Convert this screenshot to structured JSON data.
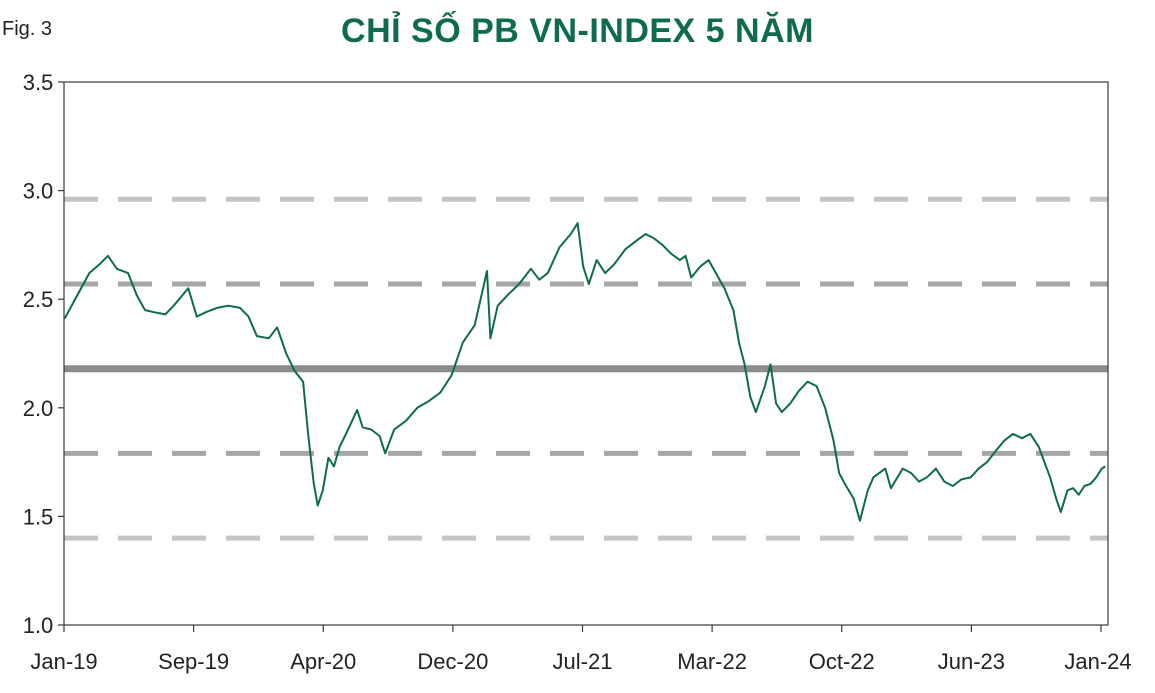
{
  "figure_label": "Fig. 3",
  "chart_data": {
    "type": "line",
    "title": "CHỈ SỐ PB VN-INDEX 5 NĂM",
    "xlabel": "",
    "ylabel": "",
    "ylim": [
      1.0,
      3.5
    ],
    "y_ticks": [
      "1.0",
      "1.5",
      "2.0",
      "2.5",
      "3.0",
      "3.5"
    ],
    "x_tick_labels": [
      "Jan-19",
      "Sep-19",
      "Apr-20",
      "Dec-20",
      "Jul-21",
      "Mar-22",
      "Oct-22",
      "Jun-23",
      "Jan-24"
    ],
    "x_range": [
      "2019-01",
      "2024-01"
    ],
    "grid": false,
    "legend": "none",
    "colors": {
      "series": "#0e6b50",
      "mean": "#8c8c8c",
      "sd1": "#a6a6a6",
      "sd2": "#c4c4c4",
      "title": "#0e6b50"
    },
    "reference_lines": [
      {
        "value": 2.96,
        "style": "dashed-light"
      },
      {
        "value": 2.57,
        "style": "dashed"
      },
      {
        "value": 2.18,
        "style": "solid"
      },
      {
        "value": 1.79,
        "style": "dashed"
      },
      {
        "value": 1.4,
        "style": "dashed-light"
      }
    ],
    "series": [
      {
        "values": [
          [
            "2019-01-02",
            2.41
          ],
          [
            "2019-01-25",
            2.52
          ],
          [
            "2019-02-15",
            2.62
          ],
          [
            "2019-03-05",
            2.66
          ],
          [
            "2019-03-20",
            2.7
          ],
          [
            "2019-04-05",
            2.64
          ],
          [
            "2019-04-25",
            2.62
          ],
          [
            "2019-05-10",
            2.52
          ],
          [
            "2019-05-25",
            2.45
          ],
          [
            "2019-06-10",
            2.44
          ],
          [
            "2019-06-30",
            2.43
          ],
          [
            "2019-07-15",
            2.47
          ],
          [
            "2019-07-31",
            2.52
          ],
          [
            "2019-08-10",
            2.55
          ],
          [
            "2019-08-25",
            2.42
          ],
          [
            "2019-09-10",
            2.44
          ],
          [
            "2019-09-30",
            2.46
          ],
          [
            "2019-10-20",
            2.47
          ],
          [
            "2019-11-10",
            2.46
          ],
          [
            "2019-11-25",
            2.42
          ],
          [
            "2019-12-10",
            2.33
          ],
          [
            "2019-12-31",
            2.32
          ],
          [
            "2020-01-15",
            2.37
          ],
          [
            "2020-01-31",
            2.25
          ],
          [
            "2020-02-15",
            2.17
          ],
          [
            "2020-03-01",
            2.12
          ],
          [
            "2020-03-10",
            1.88
          ],
          [
            "2020-03-20",
            1.65
          ],
          [
            "2020-03-27",
            1.55
          ],
          [
            "2020-04-05",
            1.62
          ],
          [
            "2020-04-15",
            1.77
          ],
          [
            "2020-04-25",
            1.73
          ],
          [
            "2020-05-05",
            1.82
          ],
          [
            "2020-05-20",
            1.9
          ],
          [
            "2020-06-05",
            1.99
          ],
          [
            "2020-06-15",
            1.91
          ],
          [
            "2020-06-30",
            1.9
          ],
          [
            "2020-07-15",
            1.87
          ],
          [
            "2020-07-25",
            1.79
          ],
          [
            "2020-08-10",
            1.9
          ],
          [
            "2020-08-31",
            1.94
          ],
          [
            "2020-09-20",
            2.0
          ],
          [
            "2020-10-10",
            2.03
          ],
          [
            "2020-10-31",
            2.07
          ],
          [
            "2020-11-20",
            2.15
          ],
          [
            "2020-12-10",
            2.3
          ],
          [
            "2020-12-31",
            2.38
          ],
          [
            "2021-01-15",
            2.55
          ],
          [
            "2021-01-22",
            2.63
          ],
          [
            "2021-01-28",
            2.32
          ],
          [
            "2021-02-10",
            2.47
          ],
          [
            "2021-02-28",
            2.52
          ],
          [
            "2021-03-20",
            2.57
          ],
          [
            "2021-04-10",
            2.64
          ],
          [
            "2021-04-25",
            2.59
          ],
          [
            "2021-05-10",
            2.62
          ],
          [
            "2021-05-31",
            2.74
          ],
          [
            "2021-06-20",
            2.8
          ],
          [
            "2021-07-02",
            2.85
          ],
          [
            "2021-07-12",
            2.65
          ],
          [
            "2021-07-22",
            2.57
          ],
          [
            "2021-08-05",
            2.68
          ],
          [
            "2021-08-20",
            2.62
          ],
          [
            "2021-09-05",
            2.66
          ],
          [
            "2021-09-25",
            2.73
          ],
          [
            "2021-10-15",
            2.77
          ],
          [
            "2021-10-31",
            2.8
          ],
          [
            "2021-11-15",
            2.78
          ],
          [
            "2021-11-30",
            2.75
          ],
          [
            "2021-12-15",
            2.71
          ],
          [
            "2021-12-31",
            2.68
          ],
          [
            "2022-01-10",
            2.7
          ],
          [
            "2022-01-20",
            2.6
          ],
          [
            "2022-02-05",
            2.65
          ],
          [
            "2022-02-20",
            2.68
          ],
          [
            "2022-03-05",
            2.62
          ],
          [
            "2022-03-20",
            2.55
          ],
          [
            "2022-04-05",
            2.45
          ],
          [
            "2022-04-15",
            2.3
          ],
          [
            "2022-04-25",
            2.2
          ],
          [
            "2022-05-05",
            2.05
          ],
          [
            "2022-05-15",
            1.98
          ],
          [
            "2022-05-31",
            2.1
          ],
          [
            "2022-06-10",
            2.2
          ],
          [
            "2022-06-20",
            2.02
          ],
          [
            "2022-06-30",
            1.98
          ],
          [
            "2022-07-15",
            2.02
          ],
          [
            "2022-07-31",
            2.08
          ],
          [
            "2022-08-15",
            2.12
          ],
          [
            "2022-08-31",
            2.1
          ],
          [
            "2022-09-15",
            2.0
          ],
          [
            "2022-09-30",
            1.85
          ],
          [
            "2022-10-10",
            1.7
          ],
          [
            "2022-10-20",
            1.65
          ],
          [
            "2022-11-05",
            1.58
          ],
          [
            "2022-11-16",
            1.48
          ],
          [
            "2022-11-30",
            1.62
          ],
          [
            "2022-12-10",
            1.68
          ],
          [
            "2022-12-31",
            1.72
          ],
          [
            "2023-01-10",
            1.63
          ],
          [
            "2023-01-31",
            1.72
          ],
          [
            "2023-02-15",
            1.7
          ],
          [
            "2023-03-01",
            1.66
          ],
          [
            "2023-03-15",
            1.68
          ],
          [
            "2023-03-31",
            1.72
          ],
          [
            "2023-04-15",
            1.66
          ],
          [
            "2023-04-30",
            1.64
          ],
          [
            "2023-05-15",
            1.67
          ],
          [
            "2023-06-01",
            1.68
          ],
          [
            "2023-06-15",
            1.72
          ],
          [
            "2023-06-30",
            1.75
          ],
          [
            "2023-07-15",
            1.8
          ],
          [
            "2023-07-31",
            1.85
          ],
          [
            "2023-08-15",
            1.88
          ],
          [
            "2023-08-31",
            1.86
          ],
          [
            "2023-09-15",
            1.88
          ],
          [
            "2023-09-30",
            1.82
          ],
          [
            "2023-10-10",
            1.75
          ],
          [
            "2023-10-20",
            1.68
          ],
          [
            "2023-10-31",
            1.58
          ],
          [
            "2023-11-08",
            1.52
          ],
          [
            "2023-11-20",
            1.62
          ],
          [
            "2023-11-30",
            1.63
          ],
          [
            "2023-12-10",
            1.6
          ],
          [
            "2023-12-20",
            1.64
          ],
          [
            "2023-12-31",
            1.65
          ],
          [
            "2024-01-10",
            1.68
          ],
          [
            "2024-01-20",
            1.72
          ],
          [
            "2024-01-26",
            1.73
          ]
        ]
      }
    ]
  }
}
